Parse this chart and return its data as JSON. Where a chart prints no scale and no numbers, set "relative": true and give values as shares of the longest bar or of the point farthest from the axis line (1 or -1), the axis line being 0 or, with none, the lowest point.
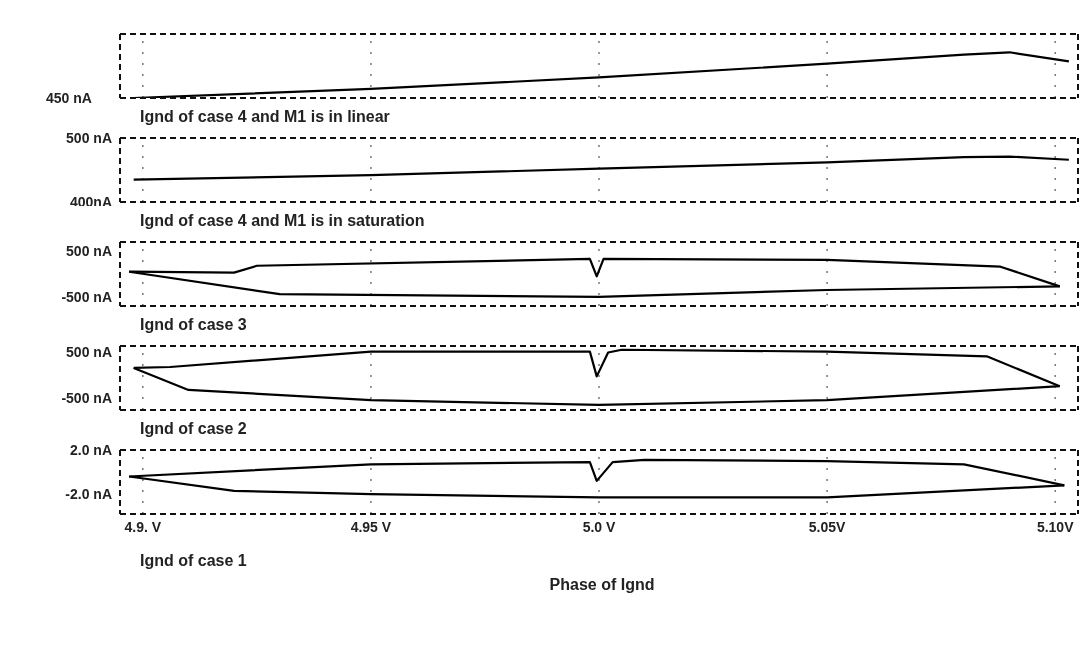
{
  "chart_data": [
    {
      "type": "line",
      "title": "Ignd of case 4 and M1 is in linear",
      "relative": true,
      "annotations": [
        "450 nA"
      ],
      "xlim": [
        4.895,
        5.105
      ],
      "xticks": [
        4.9,
        4.95,
        5.0,
        5.05,
        5.1
      ],
      "tick_labels": false,
      "grid": "x",
      "marker": "none",
      "line_style": "solid",
      "series": [
        {
          "color": "#000000",
          "x": [
            4.898,
            4.95,
            5.0,
            5.05,
            5.08,
            5.09,
            5.103
          ],
          "values": [
            0,
            0.2,
            0.45,
            0.75,
            0.95,
            1,
            0.8
          ]
        }
      ]
    },
    {
      "type": "line",
      "title": "Ignd of case 4 and M1 is in saturation",
      "xlim": [
        4.895,
        5.105
      ],
      "xticks": [
        4.9,
        4.95,
        5.0,
        5.05,
        5.1
      ],
      "ylim": [
        400,
        500
      ],
      "yticks": [
        {
          "value": 400,
          "label": "400nA"
        },
        {
          "value": 500,
          "label": "500 nA"
        }
      ],
      "tick_labels": "y",
      "grid": "x",
      "marker": "none",
      "line_style": "solid",
      "series": [
        {
          "color": "#000000",
          "x": [
            4.898,
            4.95,
            5.0,
            5.05,
            5.08,
            5.09,
            5.103
          ],
          "values": [
            435,
            442,
            452,
            462,
            470,
            471,
            466
          ]
        }
      ]
    },
    {
      "type": "line",
      "title": "Ignd of case 3",
      "xlim": [
        4.895,
        5.105
      ],
      "xticks": [
        4.9,
        4.95,
        5.0,
        5.05,
        5.1
      ],
      "ylim": [
        -700,
        700
      ],
      "yticks": [
        {
          "value": -500,
          "label": "-500 nA"
        },
        {
          "value": 500,
          "label": "500 nA"
        }
      ],
      "tick_labels": "y",
      "grid": "x",
      "marker": "none",
      "line_style": "solid",
      "series": [
        {
          "color": "#000000",
          "x": [
            4.897,
            4.92,
            4.925,
            4.998,
            4.9995,
            5.001,
            5.05,
            5.088,
            5.101
          ],
          "values": [
            50,
            30,
            180,
            330,
            -50,
            330,
            310,
            160,
            -270
          ]
        },
        {
          "color": "#000000",
          "x": [
            4.897,
            4.93,
            5.0,
            5.05,
            5.101
          ],
          "values": [
            50,
            -440,
            -500,
            -350,
            -270
          ]
        }
      ]
    },
    {
      "type": "line",
      "title": "Ignd of case 2",
      "xlim": [
        4.895,
        5.105
      ],
      "xticks": [
        4.9,
        4.95,
        5.0,
        5.05,
        5.1
      ],
      "ylim": [
        -750,
        620
      ],
      "yticks": [
        {
          "value": -500,
          "label": "-500 nA"
        },
        {
          "value": 500,
          "label": "500 nA"
        }
      ],
      "tick_labels": "y",
      "grid": "x",
      "marker": "none",
      "line_style": "solid",
      "series": [
        {
          "color": "#000000",
          "x": [
            4.898,
            4.906,
            4.95,
            4.998,
            4.9995,
            5.002,
            5.005,
            5.05,
            5.085,
            5.101
          ],
          "values": [
            150,
            170,
            500,
            500,
            -30,
            480,
            540,
            500,
            400,
            -240
          ]
        },
        {
          "color": "#000000",
          "x": [
            4.898,
            4.91,
            4.95,
            5.0,
            5.05,
            5.101
          ],
          "values": [
            150,
            -320,
            -540,
            -640,
            -540,
            -240
          ]
        }
      ]
    },
    {
      "type": "line",
      "title": "Ignd of case 1",
      "xlabel": "Phase of Ignd",
      "xlim": [
        4.895,
        5.105
      ],
      "xticks": [
        {
          "value": 4.9,
          "label": "4.9. V"
        },
        {
          "value": 4.95,
          "label": "4.95 V"
        },
        {
          "value": 5.0,
          "label": "5.0 V"
        },
        {
          "value": 5.05,
          "label": "5.05V"
        },
        {
          "value": 5.1,
          "label": "5.10V"
        }
      ],
      "ylim": [
        -3.8,
        2.0
      ],
      "yticks": [
        {
          "value": -2.0,
          "label": "-2.0 nA"
        },
        {
          "value": 2.0,
          "label": "2.0 nA"
        }
      ],
      "grid": "x",
      "marker": "none",
      "line_style": "solid",
      "series": [
        {
          "color": "#000000",
          "x": [
            4.897,
            4.95,
            4.998,
            4.9995,
            5.003,
            5.01,
            5.05,
            5.08,
            5.102
          ],
          "values": [
            -0.4,
            0.7,
            0.9,
            -0.8,
            0.9,
            1.1,
            1.0,
            0.7,
            -1.2
          ]
        },
        {
          "color": "#000000",
          "x": [
            4.897,
            4.92,
            4.95,
            5.0,
            5.05,
            5.102
          ],
          "values": [
            -0.4,
            -1.7,
            -2.0,
            -2.3,
            -2.3,
            -1.2
          ]
        }
      ]
    }
  ]
}
